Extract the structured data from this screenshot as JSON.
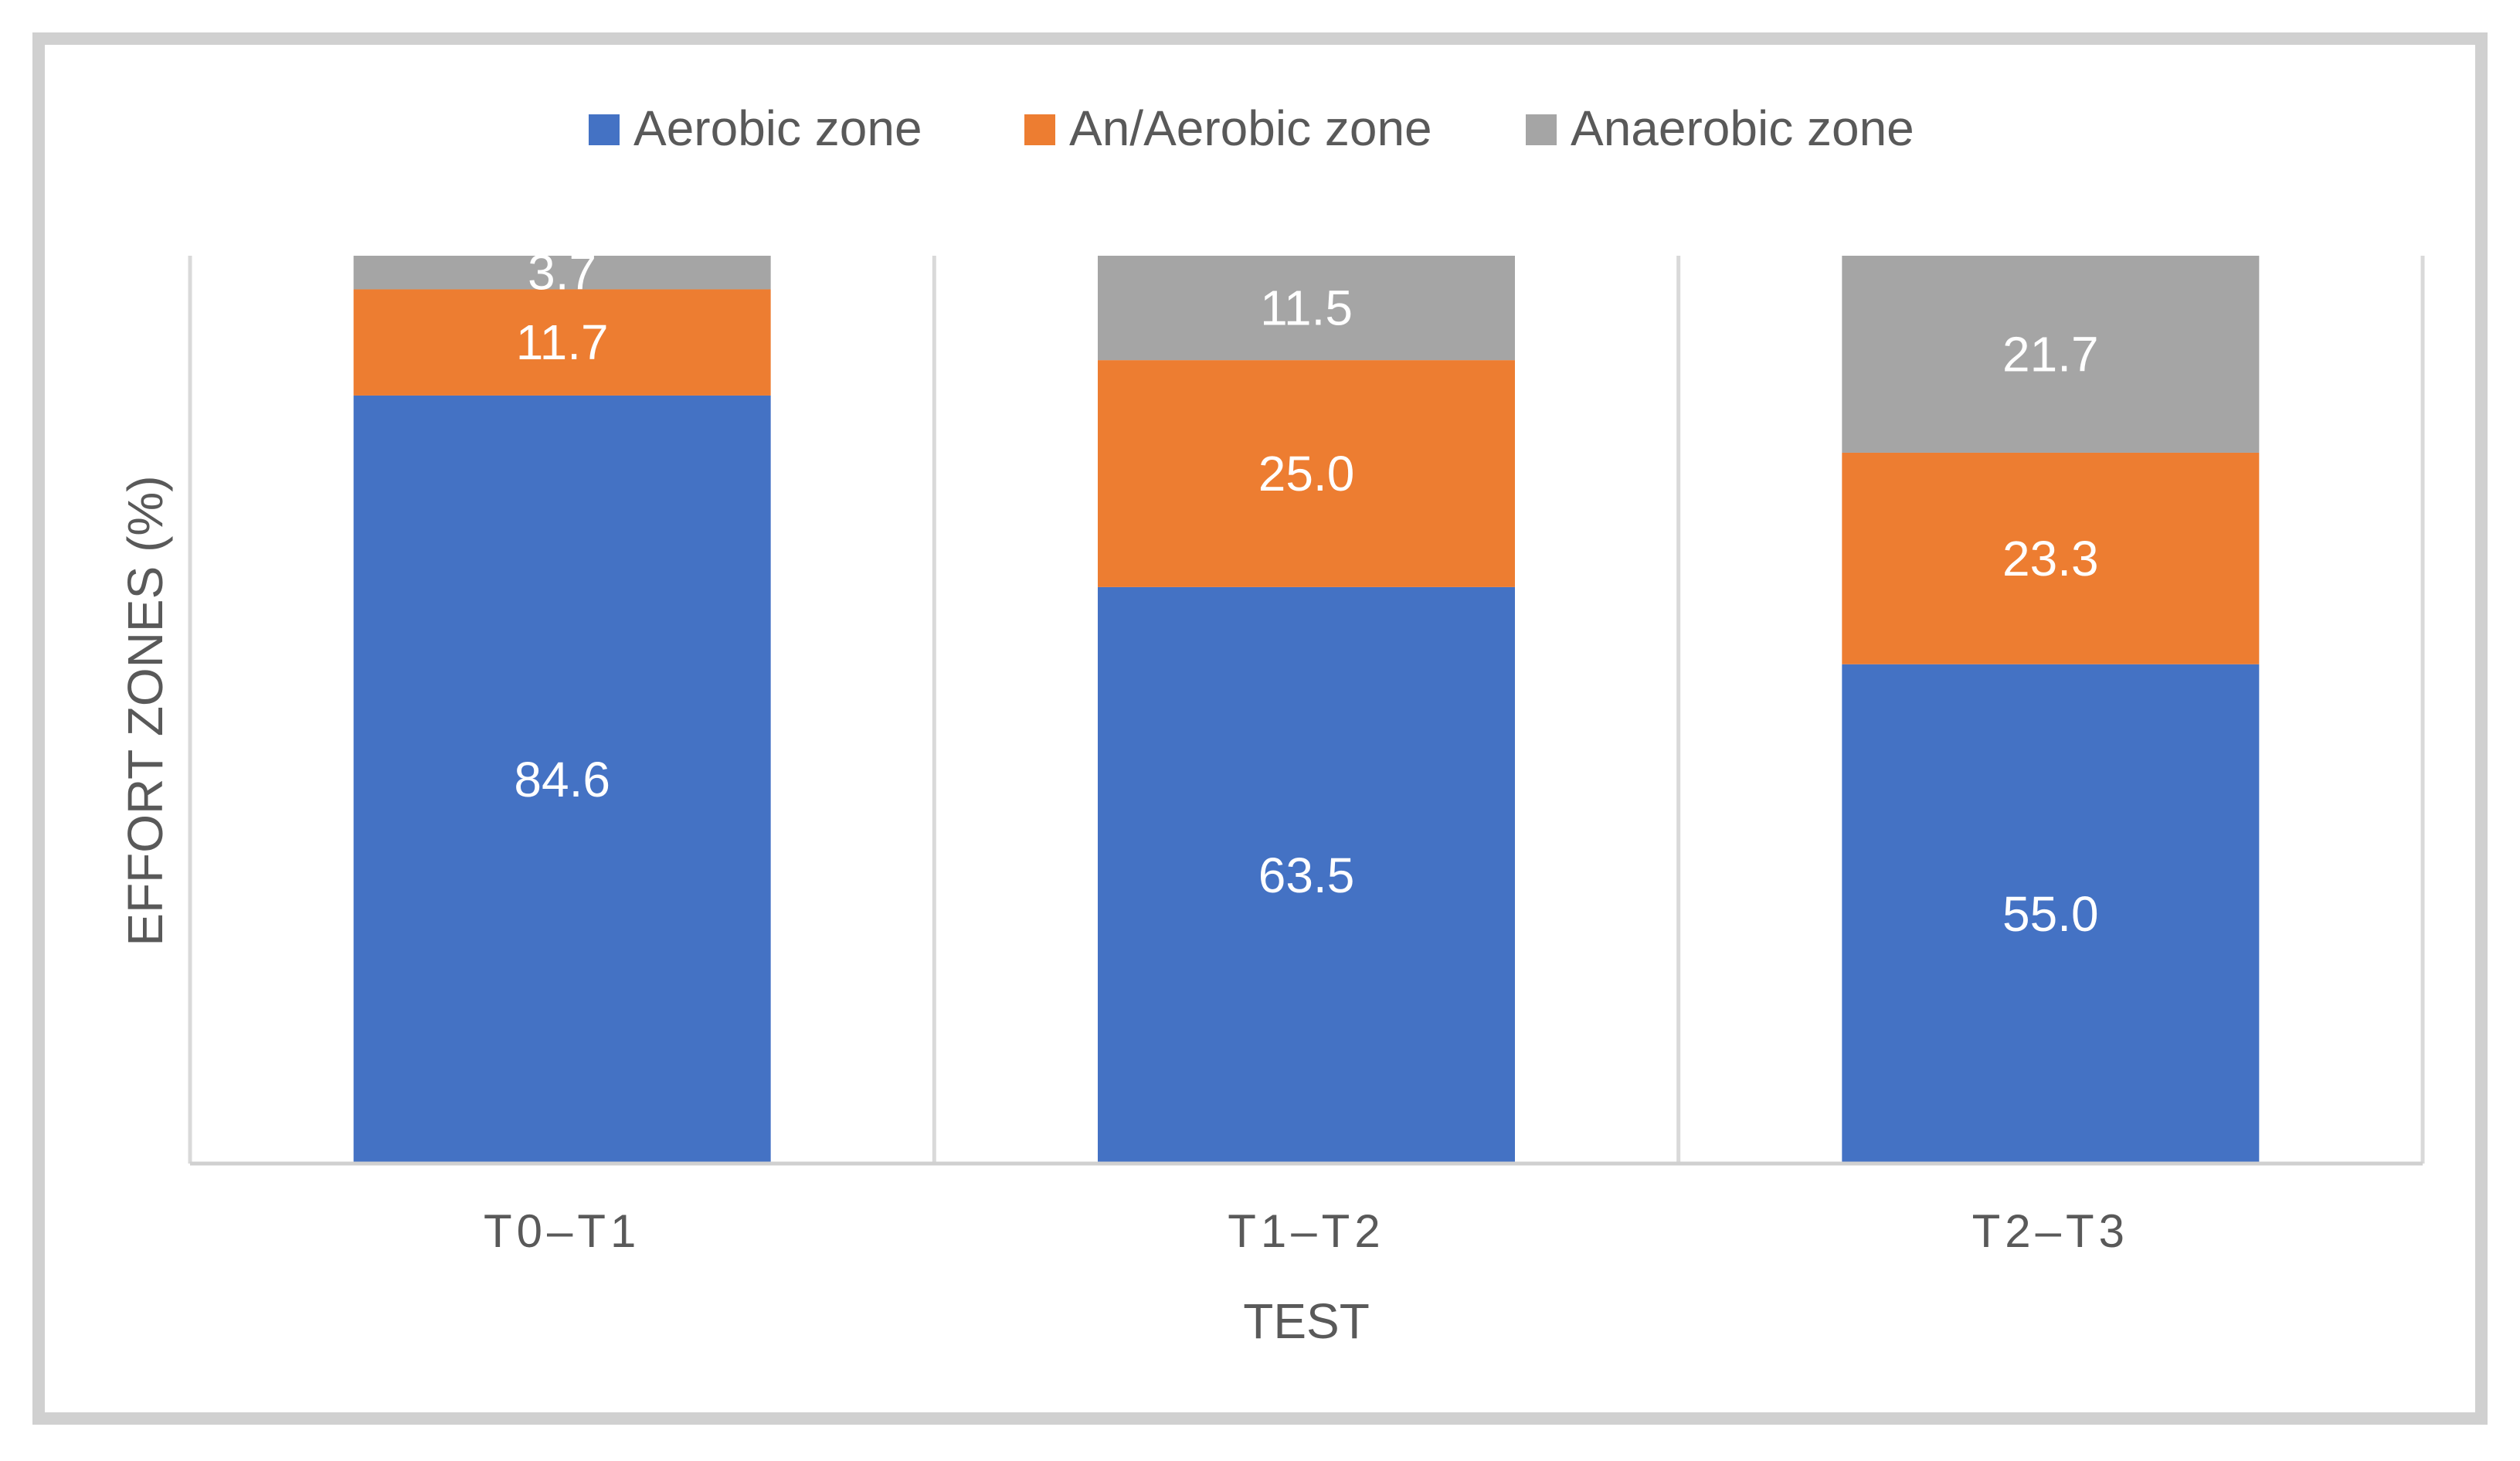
{
  "chart_data": {
    "type": "bar",
    "stacked": true,
    "categories": [
      "T0–T1",
      "T1–T2",
      "T2–T3"
    ],
    "series": [
      {
        "name": "Aerobic zone",
        "color": "#4472C4",
        "values": [
          84.6,
          63.5,
          55.0
        ],
        "labels": [
          "84.6",
          "63.5",
          "55.0"
        ]
      },
      {
        "name": "An/Aerobic zone",
        "color": "#ED7D31",
        "values": [
          11.7,
          25.0,
          23.3
        ],
        "labels": [
          "11.7",
          "25.0",
          "23.3"
        ]
      },
      {
        "name": "Anaerobic zone",
        "color": "#A5A5A5",
        "values": [
          3.7,
          11.5,
          21.7
        ],
        "labels": [
          "3.7",
          "11.5",
          "21.7"
        ]
      }
    ],
    "title": "",
    "xlabel": "TEST",
    "ylabel": "EFFORT ZONES (%)",
    "ylim": [
      0,
      100
    ],
    "legend_position": "top",
    "grid": "vertical separators between categories"
  }
}
